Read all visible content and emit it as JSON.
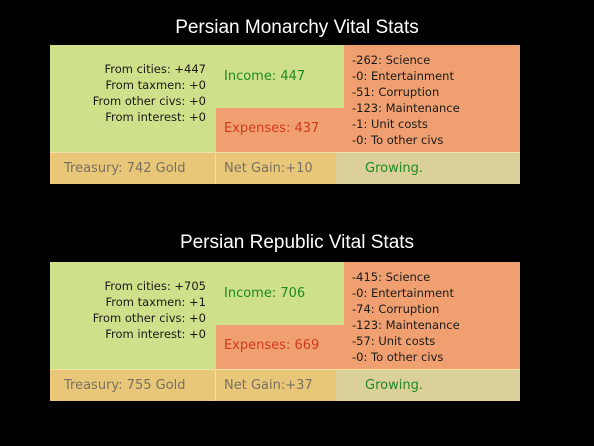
{
  "panels": [
    {
      "title": "Persian Monarchy Vital Stats",
      "income_sources": [
        "From cities: +447",
        "From taxmen: +0",
        "From other civs: +0",
        "From interest: +0"
      ],
      "income": "Income: 447",
      "expenses": "Expenses: 437",
      "expense_items": [
        "-262: Science",
        "-0: Entertainment",
        "-51: Corruption",
        "-123: Maintenance",
        "-1: Unit costs",
        "-0: To other civs"
      ],
      "treasury": "Treasury: 742 Gold",
      "net_gain": "Net Gain:+10",
      "status": "Growing."
    },
    {
      "title": "Persian Republic Vital Stats",
      "income_sources": [
        "From cities: +705",
        "From taxmen: +1",
        "From other civs: +0",
        "From interest: +0"
      ],
      "income": "Income: 706",
      "expenses": "Expenses: 669",
      "expense_items": [
        "-415: Science",
        "-0: Entertainment",
        "-74: Corruption",
        "-123: Maintenance",
        "-57: Unit costs",
        "-0: To other civs"
      ],
      "treasury": "Treasury: 755 Gold",
      "net_gain": "Net Gain:+37",
      "status": "Growing."
    }
  ],
  "colors": {
    "income_panel": "#cfe08a",
    "expense_panel": "#f0a070",
    "treasury_panel": "#e8c878",
    "status_panel": "#dcd09a",
    "income_text": "#1f8a1f",
    "expense_text": "#d03a1a"
  }
}
